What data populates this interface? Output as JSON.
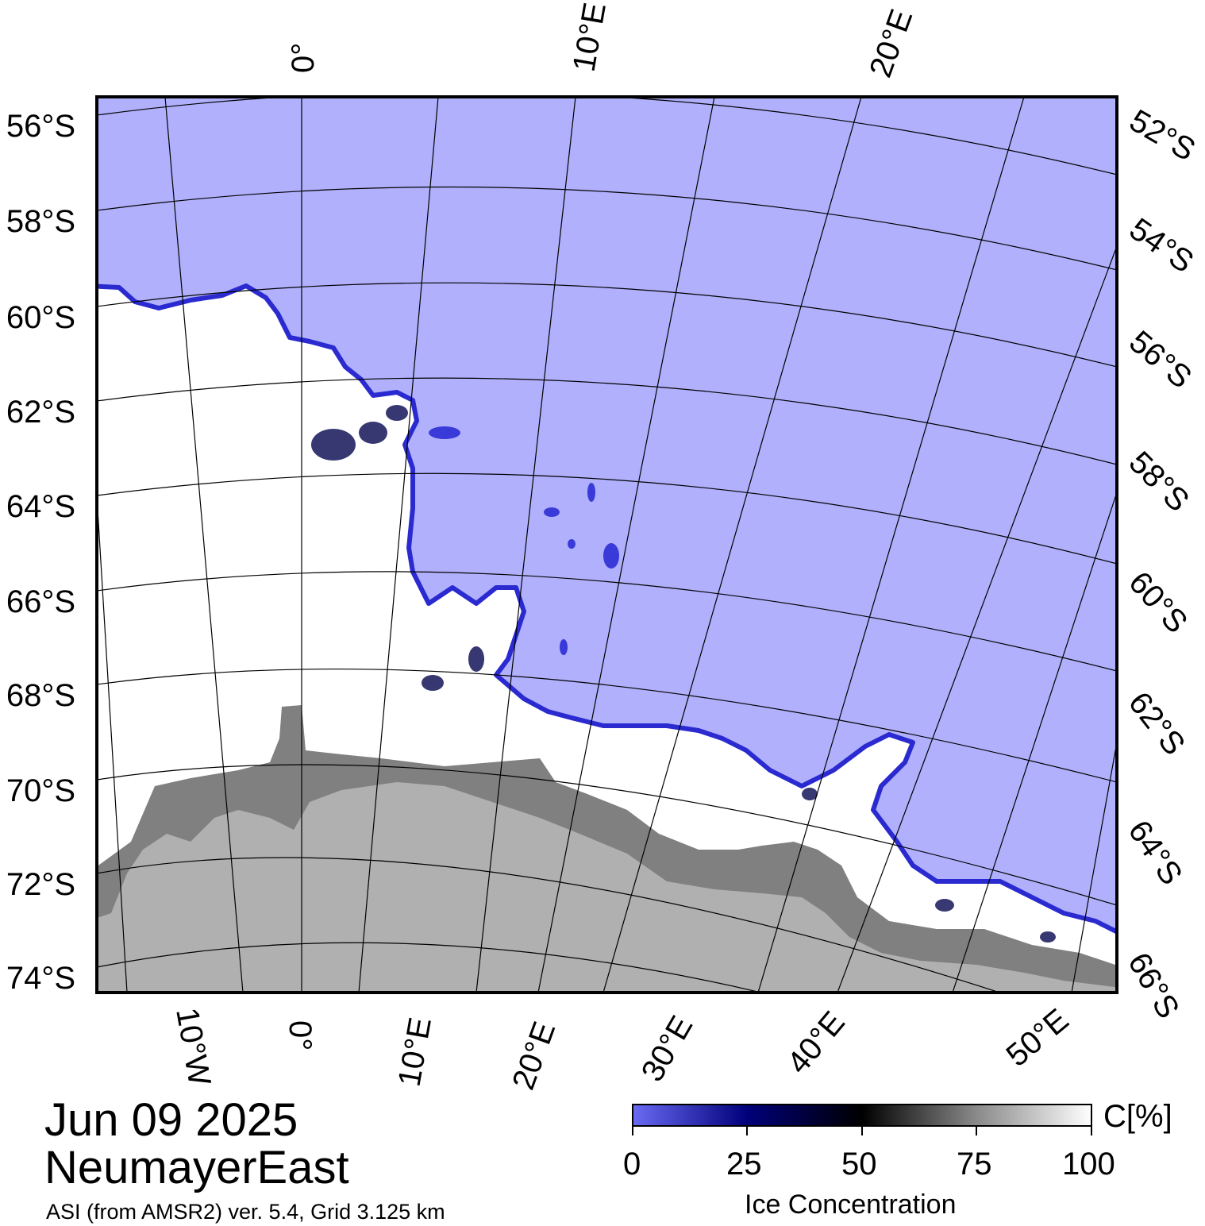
{
  "map": {
    "date": "Jun 09 2025",
    "region": "NeumayerEast",
    "source": "ASI (from AMSR2) ver. 5.4,  Grid 3.125 km",
    "top_lon_labels": [
      "0°",
      "10°E",
      "20°E"
    ],
    "left_lat_labels": [
      "56°S",
      "58°S",
      "60°S",
      "62°S",
      "64°S",
      "66°S",
      "68°S",
      "70°S",
      "72°S",
      "74°S"
    ],
    "right_lat_labels": [
      "52°S",
      "54°S",
      "56°S",
      "58°S",
      "60°S",
      "62°S",
      "64°S",
      "66°S"
    ],
    "bottom_lon_labels": [
      "10°W",
      "0°",
      "10°E",
      "20°E",
      "30°E",
      "40°E",
      "50°E"
    ],
    "colors": {
      "open_water": "#b0b0fc",
      "ice_edge": "#2020c0",
      "ice_dense": "#ffffff",
      "land": "#b0b0b0",
      "ice_shelf": "#808080"
    }
  },
  "colorbar": {
    "label": "Ice Concentration",
    "unit": "C[%]",
    "ticks": [
      "0",
      "25",
      "50",
      "75",
      "100"
    ],
    "range": [
      0,
      100
    ],
    "gradient_colors": [
      "#6a6af4",
      "#000060",
      "#000000",
      "#ffffff"
    ]
  }
}
